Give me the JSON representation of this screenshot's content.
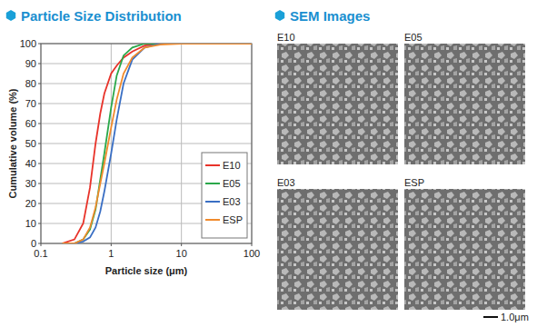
{
  "page": {
    "headers": [
      "Particle Size Distribution",
      "SEM Images"
    ],
    "sem_images": [
      {
        "label": "E10"
      },
      {
        "label": "E05"
      },
      {
        "label": "E03"
      },
      {
        "label": "ESP"
      }
    ],
    "scale_bar": "1.0μm"
  },
  "chart_data": {
    "type": "line",
    "x_label": "Particle size (μm)",
    "y_label": "Cumulative volume (%)",
    "x": [
      0.2,
      0.3,
      0.4,
      0.5,
      0.6,
      0.7,
      0.8,
      1,
      1.2,
      1.5,
      2,
      3,
      5,
      10,
      100
    ],
    "series": [
      {
        "name": "E10",
        "color": "#e8332a",
        "values": [
          0,
          2,
          10,
          28,
          50,
          65,
          75,
          85,
          89,
          93,
          96,
          99,
          100,
          100,
          100
        ]
      },
      {
        "name": "E05",
        "color": "#2aa84a",
        "values": [
          0,
          0,
          2,
          7,
          17,
          32,
          45,
          68,
          84,
          94,
          98,
          100,
          100,
          100,
          100
        ]
      },
      {
        "name": "E03",
        "color": "#3a6fc4",
        "values": [
          0,
          0,
          1,
          3,
          8,
          16,
          26,
          45,
          62,
          80,
          92,
          98,
          100,
          100,
          100
        ]
      },
      {
        "name": "ESP",
        "color": "#f08a2c",
        "values": [
          0,
          0,
          2,
          8,
          18,
          30,
          40,
          58,
          72,
          85,
          93,
          98,
          99.5,
          100,
          100
        ]
      }
    ],
    "xlim": [
      0.1,
      100
    ],
    "xticks": [
      0.1,
      1,
      10,
      100
    ],
    "ylim": [
      0,
      100
    ],
    "yticks": [
      0,
      10,
      20,
      30,
      40,
      50,
      60,
      70,
      80,
      90,
      100
    ],
    "log": "x",
    "grid": true,
    "legend": "lower right"
  }
}
